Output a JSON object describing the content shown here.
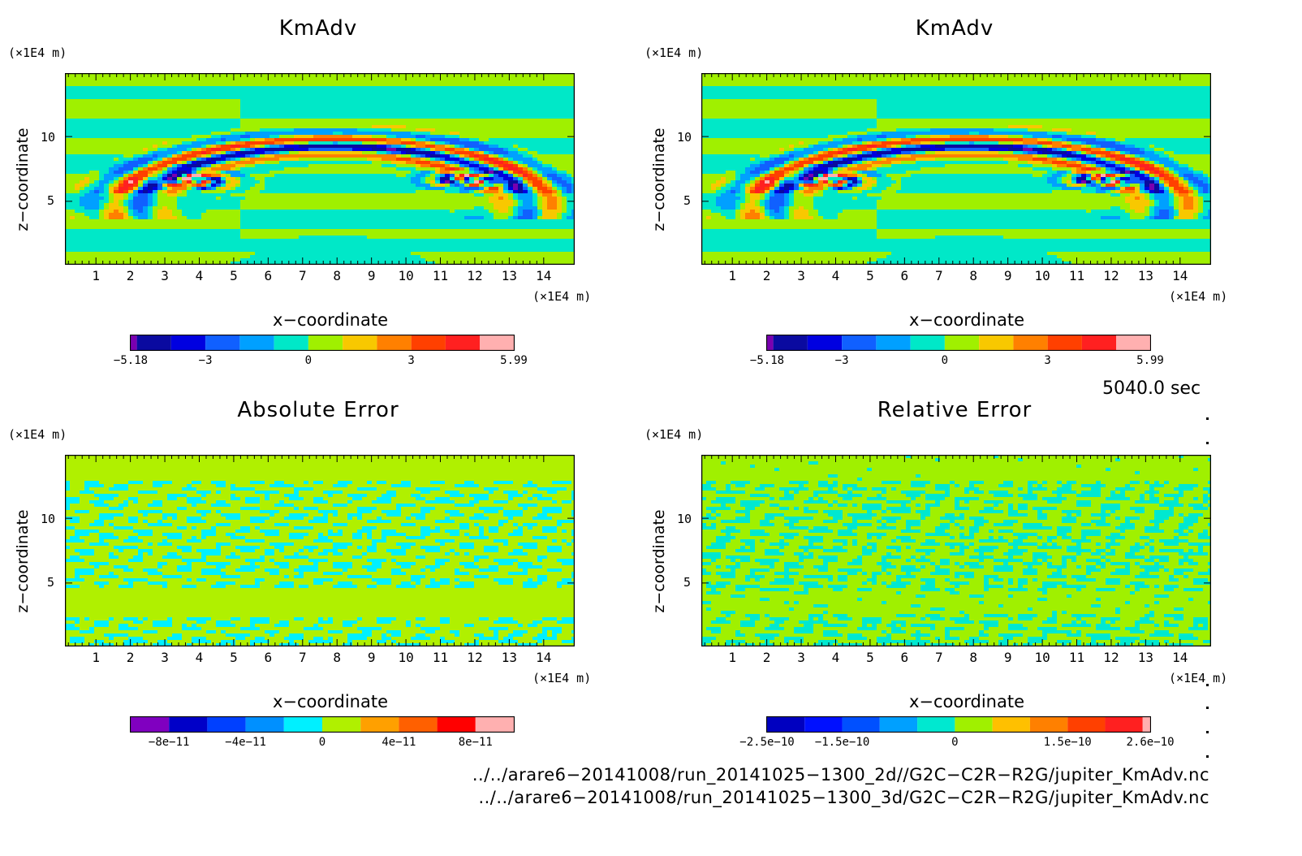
{
  "chart_data": [
    {
      "type": "heatmap",
      "title": "KmAdv",
      "xlabel": "x−coordinate",
      "ylabel": "z−coordinate",
      "x_unit": "(×1E4 m)",
      "z_unit": "(×1E4 m)",
      "x_ticks": [
        "1",
        "2",
        "3",
        "4",
        "5",
        "6",
        "7",
        "8",
        "9",
        "10",
        "11",
        "12",
        "13",
        "14"
      ],
      "z_ticks": [
        "5",
        "10"
      ],
      "xlim": [
        0.1,
        14.9
      ],
      "zlim": [
        0.1,
        14.9
      ],
      "colorbar": {
        "min": -5.18,
        "max": 5.99,
        "tick_labels": [
          "−5.18",
          "−3",
          "0",
          "3",
          "5.99"
        ],
        "tick_values": [
          -5.18,
          -3,
          0,
          3,
          5.99
        ],
        "colors": [
          "#7a00b0",
          "#0a0aa0",
          "#0000e0",
          "#1060ff",
          "#00a0ff",
          "#00e8c8",
          "#a0f000",
          "#f8c800",
          "#ff8000",
          "#ff4000",
          "#ff2020",
          "#ffb0b0"
        ],
        "levels": [
          -5.18,
          -5.0,
          -4.0,
          -3.0,
          -2.0,
          -1.0,
          0.0,
          1.0,
          2.0,
          3.0,
          4.0,
          5.0,
          5.99
        ]
      }
    },
    {
      "type": "heatmap",
      "title": "KmAdv",
      "xlabel": "x−coordinate",
      "ylabel": "z−coordinate",
      "x_unit": "(×1E4 m)",
      "z_unit": "(×1E4 m)",
      "x_ticks": [
        "1",
        "2",
        "3",
        "4",
        "5",
        "6",
        "7",
        "8",
        "9",
        "10",
        "11",
        "12",
        "13",
        "14"
      ],
      "z_ticks": [
        "5",
        "10"
      ],
      "xlim": [
        0.1,
        14.9
      ],
      "zlim": [
        0.1,
        14.9
      ],
      "colorbar": {
        "min": -5.18,
        "max": 5.99,
        "tick_labels": [
          "−5.18",
          "−3",
          "0",
          "3",
          "5.99"
        ],
        "tick_values": [
          -5.18,
          -3,
          0,
          3,
          5.99
        ],
        "colors": [
          "#7a00b0",
          "#0a0aa0",
          "#0000e0",
          "#1060ff",
          "#00a0ff",
          "#00e8c8",
          "#a0f000",
          "#f8c800",
          "#ff8000",
          "#ff4000",
          "#ff2020",
          "#ffb0b0"
        ],
        "levels": [
          -5.18,
          -5.0,
          -4.0,
          -3.0,
          -2.0,
          -1.0,
          0.0,
          1.0,
          2.0,
          3.0,
          4.0,
          5.0,
          5.99
        ]
      }
    },
    {
      "type": "heatmap",
      "title": "Absolute Error",
      "xlabel": "x−coordinate",
      "ylabel": "z−coordinate",
      "x_unit": "(×1E4 m)",
      "z_unit": "(×1E4 m)",
      "x_ticks": [
        "1",
        "2",
        "3",
        "4",
        "5",
        "6",
        "7",
        "8",
        "9",
        "10",
        "11",
        "12",
        "13",
        "14"
      ],
      "z_ticks": [
        "5",
        "10"
      ],
      "xlim": [
        0.1,
        14.9
      ],
      "zlim": [
        0.1,
        14.9
      ],
      "colorbar": {
        "min": -1e-10,
        "max": 1e-10,
        "tick_labels": [
          "−8e−11",
          "−4e−11",
          "0",
          "4e−11",
          "8e−11"
        ],
        "tick_values": [
          -8e-11,
          -4e-11,
          0,
          4e-11,
          8e-11
        ],
        "colors": [
          "#8000c0",
          "#0000c8",
          "#0040ff",
          "#0090ff",
          "#00f0ff",
          "#b0f000",
          "#ffa000",
          "#ff6000",
          "#ff0000",
          "#ffb0b0"
        ],
        "levels": [
          -1e-10,
          -8e-11,
          -6e-11,
          -4e-11,
          -2e-11,
          0,
          2e-11,
          4e-11,
          6e-11,
          8e-11,
          1e-10
        ]
      }
    },
    {
      "type": "heatmap",
      "title": "Relative Error",
      "xlabel": "x−coordinate",
      "ylabel": "z−coordinate",
      "x_unit": "(×1E4 m)",
      "z_unit": "(×1E4 m)",
      "x_ticks": [
        "1",
        "2",
        "3",
        "4",
        "5",
        "6",
        "7",
        "8",
        "9",
        "10",
        "11",
        "12",
        "13",
        "14"
      ],
      "z_ticks": [
        "5",
        "10"
      ],
      "xlim": [
        0.1,
        14.9
      ],
      "zlim": [
        0.1,
        14.9
      ],
      "colorbar": {
        "min": -2.5e-10,
        "max": 2.6e-10,
        "tick_labels": [
          "−2.5e−10",
          "−1.5e−10",
          "0",
          "1.5e−10",
          "2.6e−10"
        ],
        "tick_values": [
          -2.5e-10,
          -1.5e-10,
          0,
          1.5e-10,
          2.6e-10
        ],
        "colors": [
          "#0000c0",
          "#0010ff",
          "#0050ff",
          "#00a0ff",
          "#00e8d0",
          "#a0f000",
          "#ffc000",
          "#ff8000",
          "#ff4000",
          "#ff2020",
          "#ffb0b0"
        ],
        "levels": [
          -2.5e-10,
          -2e-10,
          -1.5e-10,
          -1e-10,
          -5e-11,
          0,
          5e-11,
          1e-10,
          1.5e-10,
          2e-10,
          2.5e-10,
          2.6e-10
        ]
      }
    }
  ],
  "time_label": "5040.0 sec",
  "file_paths": [
    "../../arare6−20141008/run_20141025−1300_2d//G2C−C2R−R2G/jupiter_KmAdv.nc",
    "../../arare6−20141008/run_20141025−1300_3d/G2C−C2R−R2G/jupiter_KmAdv.nc"
  ]
}
